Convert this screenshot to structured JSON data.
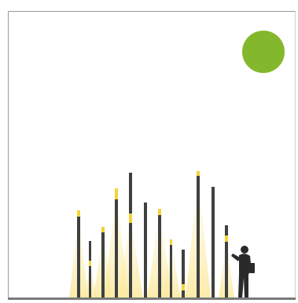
{
  "scene": {
    "colors": {
      "sun": "#84b82c",
      "pole": "#404040",
      "light": "#f3d33a",
      "glow": "#fbeeb0",
      "ground": "#7a7a7a",
      "figure": "#2a2a2a"
    },
    "icons": {
      "sun": "sun-icon",
      "person": "person-with-flashlight-icon"
    }
  }
}
